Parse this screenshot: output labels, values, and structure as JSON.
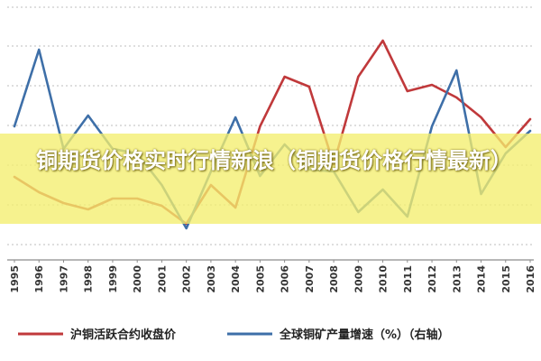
{
  "banner": {
    "title": "铜期货价格实时行情新浪（铜期货价格行情最新）",
    "color": "#f4ee6e"
  },
  "chart_data": {
    "type": "line",
    "x": [
      "1995",
      "1996",
      "1997",
      "1998",
      "1999",
      "2000",
      "2001",
      "2002",
      "2003",
      "2004",
      "2005",
      "2006",
      "2007",
      "2008",
      "2009",
      "2010",
      "2011",
      "2012",
      "2013",
      "2014",
      "2015",
      "2016"
    ],
    "series": [
      {
        "name": "沪铜活跃合约收盘价",
        "color": "#c0393b",
        "axis": "left",
        "values": [
          196,
          213,
          225,
          232,
          220,
          220,
          228,
          248,
          205,
          230,
          140,
          85,
          96,
          182,
          85,
          45,
          101,
          94,
          108,
          130,
          163,
          132
        ]
      },
      {
        "name": "全球铜矿产量增速（%）（右轴）",
        "color": "#3e6fa8",
        "axis": "right",
        "values": [
          140,
          55,
          165,
          128,
          165,
          170,
          205,
          253,
          190,
          130,
          195,
          160,
          188,
          190,
          235,
          210,
          240,
          140,
          78,
          215,
          170,
          145
        ]
      }
    ],
    "grid": true
  },
  "legend": {
    "placement": "bottom",
    "items": [
      {
        "label": "沪铜活跃合约收盘价",
        "color": "#c0393b"
      },
      {
        "label": "全球铜矿产量增速（%）（右轴）",
        "color": "#3e6fa8"
      }
    ]
  }
}
